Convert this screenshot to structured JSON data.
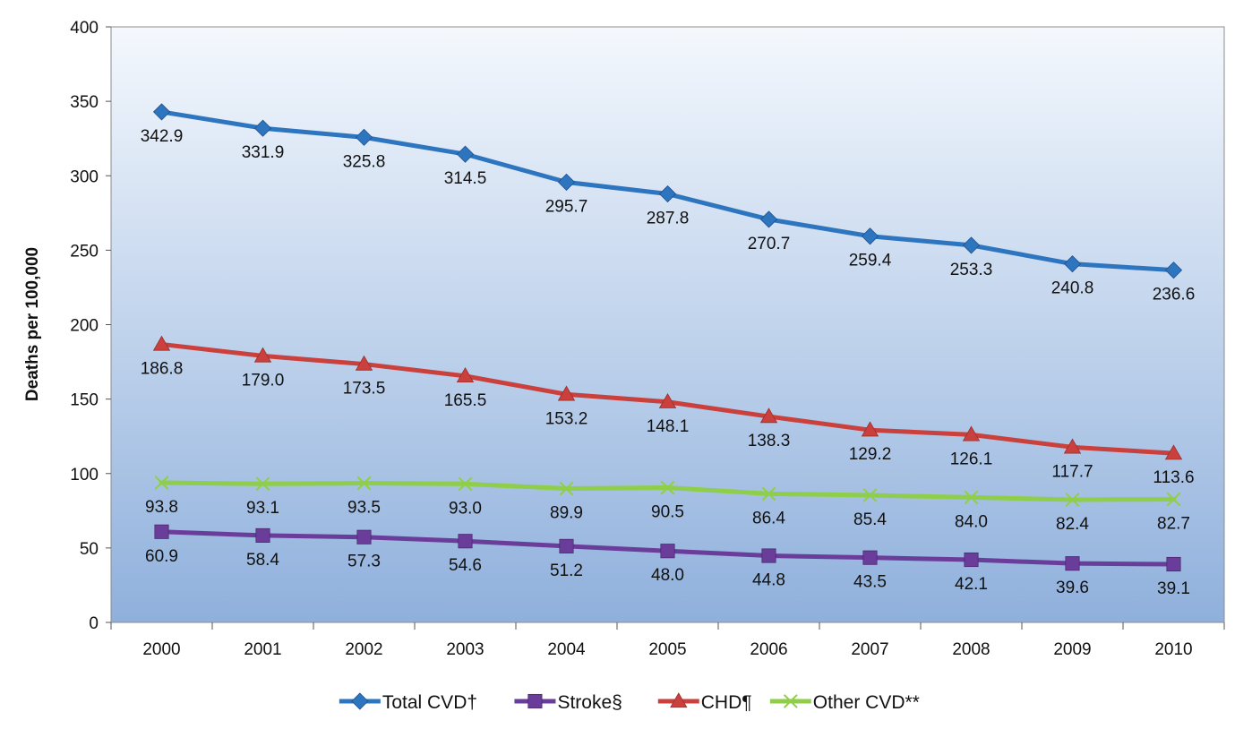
{
  "chart_data": {
    "type": "line",
    "title": "",
    "xlabel": "",
    "ylabel": "Deaths per 100,000",
    "ylim": [
      0,
      400
    ],
    "yticks": [
      0,
      50,
      100,
      150,
      200,
      250,
      300,
      350,
      400
    ],
    "categories": [
      "2000",
      "2001",
      "2002",
      "2003",
      "2004",
      "2005",
      "2006",
      "2007",
      "2008",
      "2009",
      "2010"
    ],
    "grid": false,
    "legend_position": "bottom-center",
    "series": [
      {
        "name": "Total CVD†",
        "color": "#2e75c0",
        "marker": "diamond",
        "values": [
          342.9,
          331.9,
          325.8,
          314.5,
          295.7,
          287.8,
          270.7,
          259.4,
          253.3,
          240.8,
          236.6
        ],
        "labels": [
          "342.9",
          "331.9",
          "325.8",
          "314.5",
          "295.7",
          "287.8",
          "270.7",
          "259.4",
          "253.3",
          "240.8",
          "236.6"
        ]
      },
      {
        "name": "Stroke§",
        "color": "#6a3d9a",
        "marker": "square",
        "values": [
          60.9,
          58.4,
          57.3,
          54.6,
          51.2,
          48.0,
          44.8,
          43.5,
          42.1,
          39.6,
          39.1
        ],
        "labels": [
          "60.9",
          "58.4",
          "57.3",
          "54.6",
          "51.2",
          "48.0",
          "44.8",
          "43.5",
          "42.1",
          "39.6",
          "39.1"
        ]
      },
      {
        "name": "CHD¶",
        "color": "#c9403d",
        "marker": "triangle",
        "values": [
          186.8,
          179.0,
          173.5,
          165.5,
          153.2,
          148.1,
          138.3,
          129.2,
          126.1,
          117.7,
          113.6
        ],
        "labels": [
          "186.8",
          "179.0",
          "173.5",
          "165.5",
          "153.2",
          "148.1",
          "138.3",
          "129.2",
          "126.1",
          "117.7",
          "113.6"
        ]
      },
      {
        "name": "Other CVD**",
        "color": "#8fce4a",
        "marker": "x",
        "values": [
          93.8,
          93.1,
          93.5,
          93.0,
          89.9,
          90.5,
          86.4,
          85.4,
          84.0,
          82.4,
          82.7
        ],
        "labels": [
          "93.8",
          "93.1",
          "93.5",
          "93.0",
          "89.9",
          "90.5",
          "86.4",
          "85.4",
          "84.0",
          "82.4",
          "82.7"
        ]
      }
    ],
    "legend_order": [
      0,
      1,
      2,
      3
    ]
  }
}
